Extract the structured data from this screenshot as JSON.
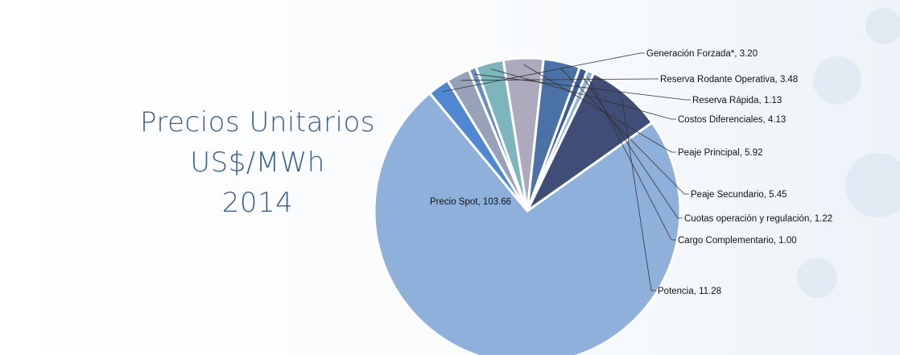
{
  "title": {
    "line1": "Precios Unitarios",
    "line2": "US$/MWh",
    "line3": "2014"
  },
  "chart_data": {
    "type": "pie",
    "title": "Precios Unitarios US$/MWh 2014",
    "slices": [
      {
        "label": "Precio Spot",
        "value": 103.66,
        "text": "Precio Spot, 103.66",
        "color": "#8eb0db"
      },
      {
        "label": "Generación Forzada*",
        "value": 3.2,
        "text": "Generación Forzada*, 3.20",
        "color": "#4f88d0"
      },
      {
        "label": "Reserva Rodante Operativa",
        "value": 3.48,
        "text": "Reserva Rodante Operativa, 3.48",
        "color": "#97a1b8"
      },
      {
        "label": "Reserva Rápida",
        "value": 1.13,
        "text": "Reserva Rápida, 1.13",
        "color": "#6a8cc0"
      },
      {
        "label": "Costos Diferenciales",
        "value": 4.13,
        "text": "Costos Diferenciales, 4.13",
        "color": "#7cb5bc"
      },
      {
        "label": "Peaje Principal",
        "value": 5.92,
        "text": "Peaje Principal, 5.92",
        "color": "#aeaabe"
      },
      {
        "label": "Peaje Secundario",
        "value": 5.45,
        "text": "Peaje Secundario, 5.45",
        "color": "#4a72a6"
      },
      {
        "label": "Cuotas operación y regulación",
        "value": 1.22,
        "text": "Cuotas operación y regulación, 1.22",
        "color": "#3a5c99"
      },
      {
        "label": "Cargo Complementario",
        "value": 1.0,
        "text": "Cargo Complementario, 1.00",
        "color": "#8fb3d8"
      },
      {
        "label": "Potencia",
        "value": 11.28,
        "text": "Potencia, 11.28",
        "color": "#3f4d77"
      }
    ]
  }
}
